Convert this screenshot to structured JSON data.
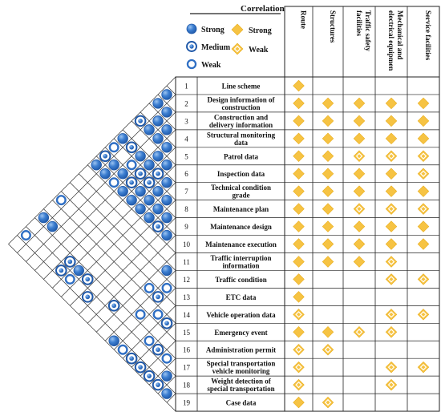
{
  "title": "Correlation",
  "legend": {
    "circle": [
      {
        "label": "Strong",
        "level": "strong"
      },
      {
        "label": "Medium",
        "level": "medium"
      },
      {
        "label": "Weak",
        "level": "weak"
      }
    ],
    "diamond": [
      {
        "label": "Strong",
        "level": "strong"
      },
      {
        "label": "Weak",
        "level": "weak"
      }
    ]
  },
  "columns": [
    "Route",
    "Structures",
    "Traffic safety facilities",
    "Mechanical and electrical equipmen",
    "Service facilities"
  ],
  "columns_display": [
    [
      "Route"
    ],
    [
      "Structures"
    ],
    [
      "Traffic safety",
      "facilities"
    ],
    [
      "Mechanical and",
      "electrical equipmen"
    ],
    [
      "Service facilities"
    ]
  ],
  "rows": [
    {
      "n": "1",
      "text": [
        "Line scheme"
      ]
    },
    {
      "n": "2",
      "text": [
        "Design information of",
        "construction"
      ]
    },
    {
      "n": "3",
      "text": [
        "Construction and",
        "delivery information"
      ]
    },
    {
      "n": "4",
      "text": [
        "Structural monitoring",
        "data"
      ]
    },
    {
      "n": "5",
      "text": [
        "Patrol data"
      ]
    },
    {
      "n": "6",
      "text": [
        "Inspection data"
      ]
    },
    {
      "n": "7",
      "text": [
        "Technical condition",
        "grade"
      ]
    },
    {
      "n": "8",
      "text": [
        "Maintenance plan"
      ]
    },
    {
      "n": "9",
      "text": [
        "Maintenance design"
      ]
    },
    {
      "n": "10",
      "text": [
        "Maintenance execution"
      ]
    },
    {
      "n": "11",
      "text": [
        "Traffic interruption",
        "information"
      ]
    },
    {
      "n": "12",
      "text": [
        "Traffic condition"
      ]
    },
    {
      "n": "13",
      "text": [
        "ETC data"
      ]
    },
    {
      "n": "14",
      "text": [
        "Vehicle operation data"
      ]
    },
    {
      "n": "15",
      "text": [
        "Emergency event"
      ]
    },
    {
      "n": "16",
      "text": [
        "Administration permit"
      ]
    },
    {
      "n": "17",
      "text": [
        "Special transportation",
        "vehicle monitoring"
      ]
    },
    {
      "n": "18",
      "text": [
        "Weight detection of",
        "special transportation"
      ]
    },
    {
      "n": "19",
      "text": [
        "Case data"
      ]
    }
  ],
  "matrix": [
    [
      "S",
      "",
      "",
      "",
      ""
    ],
    [
      "S",
      "S",
      "S",
      "S",
      "S"
    ],
    [
      "S",
      "S",
      "S",
      "S",
      "S"
    ],
    [
      "S",
      "S",
      "S",
      "S",
      "S"
    ],
    [
      "S",
      "S",
      "W",
      "W",
      "W"
    ],
    [
      "S",
      "S",
      "S",
      "S",
      "W"
    ],
    [
      "S",
      "S",
      "S",
      "S",
      "S"
    ],
    [
      "S",
      "S",
      "W",
      "W",
      "W"
    ],
    [
      "S",
      "S",
      "S",
      "S",
      "S"
    ],
    [
      "S",
      "S",
      "S",
      "S",
      "S"
    ],
    [
      "S",
      "S",
      "S",
      "W",
      ""
    ],
    [
      "S",
      "",
      "",
      "W",
      "W"
    ],
    [
      "S",
      "",
      "",
      "",
      ""
    ],
    [
      "W",
      "",
      "",
      "W",
      "W"
    ],
    [
      "S",
      "S",
      "W",
      "W",
      ""
    ],
    [
      "W",
      "W",
      "",
      "",
      ""
    ],
    [
      "W",
      "",
      "",
      "W",
      "W"
    ],
    [
      "W",
      "",
      "",
      "W",
      ""
    ],
    [
      "S",
      "W",
      "",
      "",
      ""
    ]
  ],
  "roof_marks": [
    {
      "a": 1,
      "b": 2,
      "level": "strong"
    },
    {
      "a": 2,
      "b": 3,
      "level": "strong"
    },
    {
      "a": 3,
      "b": 4,
      "level": "strong"
    },
    {
      "a": 4,
      "b": 5,
      "level": "strong"
    },
    {
      "a": 5,
      "b": 6,
      "level": "strong"
    },
    {
      "a": 6,
      "b": 7,
      "level": "strong"
    },
    {
      "a": 7,
      "b": 8,
      "level": "strong"
    },
    {
      "a": 8,
      "b": 9,
      "level": "strong"
    },
    {
      "a": 9,
      "b": 10,
      "level": "strong"
    },
    {
      "a": 11,
      "b": 12,
      "level": "strong"
    },
    {
      "a": 12,
      "b": 13,
      "level": "weak"
    },
    {
      "a": 14,
      "b": 15,
      "level": "medium"
    },
    {
      "a": 16,
      "b": 17,
      "level": "weak"
    },
    {
      "a": 17,
      "b": 18,
      "level": "strong"
    },
    {
      "a": 18,
      "b": 19,
      "level": "strong"
    },
    {
      "a": 1,
      "b": 3,
      "level": "strong"
    },
    {
      "a": 2,
      "b": 4,
      "level": "strong"
    },
    {
      "a": 3,
      "b": 5,
      "level": "strong"
    },
    {
      "a": 4,
      "b": 6,
      "level": "strong"
    },
    {
      "a": 5,
      "b": 7,
      "level": "medium"
    },
    {
      "a": 6,
      "b": 8,
      "level": "strong"
    },
    {
      "a": 7,
      "b": 9,
      "level": "strong"
    },
    {
      "a": 8,
      "b": 10,
      "level": "medium"
    },
    {
      "a": 12,
      "b": 14,
      "level": "medium"
    },
    {
      "a": 13,
      "b": 15,
      "level": "weak"
    },
    {
      "a": 15,
      "b": 17,
      "level": "medium"
    },
    {
      "a": 17,
      "b": 19,
      "level": "medium"
    },
    {
      "a": 2,
      "b": 5,
      "level": "strong"
    },
    {
      "a": 4,
      "b": 7,
      "level": "strong"
    },
    {
      "a": 5,
      "b": 8,
      "level": "medium"
    },
    {
      "a": 6,
      "b": 9,
      "level": "strong"
    },
    {
      "a": 7,
      "b": 10,
      "level": "strong"
    },
    {
      "a": 11,
      "b": 14,
      "level": "weak"
    },
    {
      "a": 14,
      "b": 17,
      "level": "weak"
    },
    {
      "a": 16,
      "b": 19,
      "level": "medium"
    },
    {
      "a": 1,
      "b": 5,
      "level": "medium"
    },
    {
      "a": 3,
      "b": 7,
      "level": "strong"
    },
    {
      "a": 4,
      "b": 8,
      "level": "medium"
    },
    {
      "a": 5,
      "b": 9,
      "level": "strong"
    },
    {
      "a": 6,
      "b": 10,
      "level": "strong"
    },
    {
      "a": 12,
      "b": 16,
      "level": "weak"
    },
    {
      "a": 15,
      "b": 19,
      "level": "medium"
    },
    {
      "a": 2,
      "b": 7,
      "level": "medium"
    },
    {
      "a": 3,
      "b": 8,
      "level": "weak"
    },
    {
      "a": 4,
      "b": 9,
      "level": "medium"
    },
    {
      "a": 5,
      "b": 10,
      "level": "strong"
    },
    {
      "a": 14,
      "b": 19,
      "level": "medium"
    },
    {
      "a": 1,
      "b": 7,
      "level": "strong"
    },
    {
      "a": 3,
      "b": 9,
      "level": "strong"
    },
    {
      "a": 4,
      "b": 10,
      "level": "strong"
    },
    {
      "a": 13,
      "b": 19,
      "level": "weak"
    },
    {
      "a": 1,
      "b": 8,
      "level": "weak"
    },
    {
      "a": 2,
      "b": 9,
      "level": "strong"
    },
    {
      "a": 3,
      "b": 10,
      "level": "weak"
    },
    {
      "a": 10,
      "b": 17,
      "level": "medium"
    },
    {
      "a": 12,
      "b": 19,
      "level": "strong"
    },
    {
      "a": 1,
      "b": 9,
      "level": "medium"
    },
    {
      "a": 2,
      "b": 10,
      "level": "strong"
    },
    {
      "a": 1,
      "b": 10,
      "level": "strong"
    },
    {
      "a": 7,
      "b": 17,
      "level": "medium"
    },
    {
      "a": 8,
      "b": 18,
      "level": "medium"
    },
    {
      "a": 6,
      "b": 17,
      "level": "strong"
    },
    {
      "a": 5,
      "b": 17,
      "level": "medium"
    },
    {
      "a": 6,
      "b": 18,
      "level": "weak"
    },
    {
      "a": 1,
      "b": 14,
      "level": "weak"
    },
    {
      "a": 5,
      "b": 18,
      "level": "medium"
    },
    {
      "a": 2,
      "b": 16,
      "level": "strong"
    },
    {
      "a": 1,
      "b": 16,
      "level": "strong"
    },
    {
      "a": 1,
      "b": 18,
      "level": "weak"
    }
  ],
  "colors": {
    "circle_fill": "#2f6fc4",
    "circle_dark": "#1f58a8",
    "diamond_fill": "#f6c343",
    "grid": "#333333"
  }
}
